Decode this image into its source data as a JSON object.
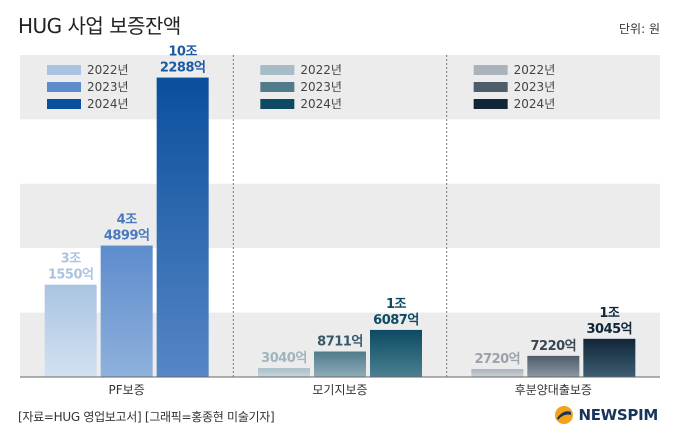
{
  "header": {
    "title": "HUG 사업 보증잔액",
    "unit": "단위: 원"
  },
  "footer": {
    "source": "[자료=HUG 영업보고서] [그래픽=홍종현 미술기자]",
    "brand": "NEWSPIM"
  },
  "chart_data": {
    "type": "bar",
    "categories": [
      "PF보증",
      "모기지보증",
      "후분양대출보증"
    ],
    "unit": "원",
    "value_unit": "억 원",
    "ylim": [
      0,
      110000
    ],
    "grid": "horizontal bands",
    "legend_placement": "top-left of each group",
    "groups": [
      {
        "category": "PF보증",
        "bars": [
          {
            "series": "2022년",
            "value": 31550,
            "label": [
              "3조",
              "1550억"
            ],
            "color_top": "#a9c4e2",
            "color_bottom": "#d3e1f1",
            "label_color": "#a9c4e2"
          },
          {
            "series": "2023년",
            "value": 44899,
            "label": [
              "4조",
              "4899억"
            ],
            "color_top": "#5d8ccc",
            "color_bottom": "#8fb1dd",
            "label_color": "#4a79bf"
          },
          {
            "series": "2024년",
            "value": 102288,
            "label": [
              "10조",
              "2288억"
            ],
            "color_top": "#0a4f9c",
            "color_bottom": "#5686c6",
            "label_color": "#1d5aa6"
          }
        ],
        "legend": [
          {
            "name": "2022년",
            "color": "#a9c4e2"
          },
          {
            "name": "2023년",
            "color": "#5d8ccc"
          },
          {
            "name": "2024년",
            "color": "#0a4f9c"
          }
        ]
      },
      {
        "category": "모기지보증",
        "bars": [
          {
            "series": "2022년",
            "value": 3040,
            "label": [
              "3040억"
            ],
            "color_top": "#a6bdc6",
            "color_bottom": "#c9d7dc",
            "label_color": "#9fb4bd"
          },
          {
            "series": "2023년",
            "value": 8711,
            "label": [
              "8711억"
            ],
            "color_top": "#4f7b8a",
            "color_bottom": "#8fadb8",
            "label_color": "#35586a"
          },
          {
            "series": "2024년",
            "value": 16087,
            "label": [
              "1조",
              "6087억"
            ],
            "color_top": "#0e4a62",
            "color_bottom": "#4a8091",
            "label_color": "#0e4a62"
          }
        ],
        "legend": [
          {
            "name": "2022년",
            "color": "#a6bdc6"
          },
          {
            "name": "2023년",
            "color": "#4f7b8a"
          },
          {
            "name": "2024년",
            "color": "#0e4a62"
          }
        ]
      },
      {
        "category": "후분양대출보증",
        "bars": [
          {
            "series": "2022년",
            "value": 2720,
            "label": [
              "2720억"
            ],
            "color_top": "#aab3bc",
            "color_bottom": "#cbd1d7",
            "label_color": "#9aa3ac"
          },
          {
            "series": "2023년",
            "value": 7220,
            "label": [
              "7220억"
            ],
            "color_top": "#4f5d6a",
            "color_bottom": "#8c98a3",
            "label_color": "#3a4753"
          },
          {
            "series": "2024년",
            "value": 13045,
            "label": [
              "1조",
              "3045억"
            ],
            "color_top": "#102638",
            "color_bottom": "#3d5e72",
            "label_color": "#102638"
          }
        ],
        "legend": [
          {
            "name": "2022년",
            "color": "#aab3bc"
          },
          {
            "name": "2023년",
            "color": "#4f5d6a"
          },
          {
            "name": "2024년",
            "color": "#102638"
          }
        ]
      }
    ]
  }
}
